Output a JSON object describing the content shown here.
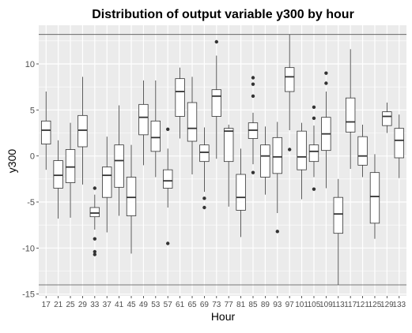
{
  "chart_data": {
    "type": "boxplot",
    "title": "Distribution of output variable y300 by hour",
    "xlabel": "Hour",
    "ylabel": "y300",
    "ylim": [
      -15.2,
      14.2
    ],
    "yticks": [
      -15,
      -10,
      -5,
      0,
      5,
      10
    ],
    "reference_lines": [
      13.2,
      -14
    ],
    "categories": [
      "17",
      "21",
      "25",
      "29",
      "33",
      "37",
      "41",
      "45",
      "49",
      "53",
      "57",
      "61",
      "65",
      "69",
      "73",
      "77",
      "81",
      "85",
      "89",
      "93",
      "97",
      "101",
      "105",
      "109",
      "113",
      "117",
      "121",
      "125",
      "129",
      "133"
    ],
    "boxes": [
      {
        "x": "17",
        "lower": -1.5,
        "q1": 1.3,
        "median": 2.8,
        "q3": 3.8,
        "upper": 7.0,
        "outliers": []
      },
      {
        "x": "21",
        "lower": -6.8,
        "q1": -3.5,
        "median": -2.1,
        "q3": -0.5,
        "upper": 1.7,
        "outliers": []
      },
      {
        "x": "25",
        "lower": -6.7,
        "q1": -2.9,
        "median": -1.2,
        "q3": 0.7,
        "upper": 3.6,
        "outliers": []
      },
      {
        "x": "29",
        "lower": -3.1,
        "q1": 1.0,
        "median": 2.8,
        "q3": 4.4,
        "upper": 8.6,
        "outliers": []
      },
      {
        "x": "33",
        "lower": -8.0,
        "q1": -6.6,
        "median": -6.2,
        "q3": -5.6,
        "upper": -4.2,
        "outliers": [
          -3.5,
          -9.0,
          -10.4,
          -10.7
        ]
      },
      {
        "x": "37",
        "lower": -8.3,
        "q1": -4.5,
        "median": -2.1,
        "q3": -1.2,
        "upper": 2.1,
        "outliers": []
      },
      {
        "x": "41",
        "lower": -6.5,
        "q1": -3.4,
        "median": -0.5,
        "q3": 1.2,
        "upper": 5.5,
        "outliers": []
      },
      {
        "x": "45",
        "lower": -10.6,
        "q1": -6.5,
        "median": -4.5,
        "q3": -2.3,
        "upper": 1.2,
        "outliers": []
      },
      {
        "x": "49",
        "lower": -1.0,
        "q1": 2.3,
        "median": 4.2,
        "q3": 5.6,
        "upper": 8.2,
        "outliers": []
      },
      {
        "x": "53",
        "lower": -2.3,
        "q1": 0.5,
        "median": 2.0,
        "q3": 3.8,
        "upper": 8.2,
        "outliers": []
      },
      {
        "x": "57",
        "lower": -5.6,
        "q1": -3.5,
        "median": -2.7,
        "q3": -1.5,
        "upper": 0.8,
        "outliers": [
          2.9,
          -9.5
        ]
      },
      {
        "x": "61",
        "lower": 1.9,
        "q1": 4.3,
        "median": 7.0,
        "q3": 8.4,
        "upper": 9.6,
        "outliers": []
      },
      {
        "x": "65",
        "lower": -2.0,
        "q1": 1.6,
        "median": 3.0,
        "q3": 5.8,
        "upper": 8.6,
        "outliers": []
      },
      {
        "x": "69",
        "lower": -3.9,
        "q1": -0.6,
        "median": 0.4,
        "q3": 1.2,
        "upper": 3.1,
        "outliers": [
          -4.6,
          -5.6
        ]
      },
      {
        "x": "73",
        "lower": -0.3,
        "q1": 4.3,
        "median": 6.5,
        "q3": 7.2,
        "upper": 10.9,
        "outliers": [
          12.4
        ]
      },
      {
        "x": "77",
        "lower": -5.5,
        "q1": -0.6,
        "median": 2.7,
        "q3": 3.0,
        "upper": 3.4,
        "outliers": []
      },
      {
        "x": "81",
        "lower": -8.8,
        "q1": -5.9,
        "median": -4.5,
        "q3": -2.0,
        "upper": 0.8,
        "outliers": []
      },
      {
        "x": "85",
        "lower": -0.9,
        "q1": 1.9,
        "median": 2.8,
        "q3": 3.6,
        "upper": 4.7,
        "outliers": [
          8.5,
          7.8,
          6.5,
          -1.8
        ]
      },
      {
        "x": "89",
        "lower": -4.2,
        "q1": -2.3,
        "median": 0.0,
        "q3": 1.2,
        "upper": 3.2,
        "outliers": []
      },
      {
        "x": "93",
        "lower": -6.2,
        "q1": -1.9,
        "median": -0.1,
        "q3": 2.0,
        "upper": 3.7,
        "outliers": [
          -8.2
        ]
      },
      {
        "x": "97",
        "lower": 2.8,
        "q1": 7.0,
        "median": 8.6,
        "q3": 9.6,
        "upper": 13.2,
        "outliers": [
          0.7
        ]
      },
      {
        "x": "101",
        "lower": -4.7,
        "q1": -1.5,
        "median": -0.1,
        "q3": 2.7,
        "upper": 3.6,
        "outliers": []
      },
      {
        "x": "105",
        "lower": -2.3,
        "q1": -0.6,
        "median": 0.5,
        "q3": 1.2,
        "upper": 3.3,
        "outliers": [
          5.3,
          4.1,
          -3.6
        ]
      },
      {
        "x": "109",
        "lower": -3.5,
        "q1": 0.6,
        "median": 2.4,
        "q3": 4.2,
        "upper": 7.0,
        "outliers": [
          9.0,
          7.9
        ]
      },
      {
        "x": "113",
        "lower": -14.0,
        "q1": -8.4,
        "median": -6.3,
        "q3": -4.5,
        "upper": -2.5,
        "outliers": []
      },
      {
        "x": "117",
        "lower": -1.4,
        "q1": 2.6,
        "median": 3.7,
        "q3": 6.3,
        "upper": 11.6,
        "outliers": []
      },
      {
        "x": "121",
        "lower": -2.3,
        "q1": -1.0,
        "median": 0.0,
        "q3": 2.1,
        "upper": 3.4,
        "outliers": []
      },
      {
        "x": "125",
        "lower": -9.0,
        "q1": -7.3,
        "median": -4.4,
        "q3": -1.8,
        "upper": 0.2,
        "outliers": []
      },
      {
        "x": "129",
        "lower": 2.5,
        "q1": 3.3,
        "median": 4.3,
        "q3": 4.8,
        "upper": 5.8,
        "outliers": []
      },
      {
        "x": "133",
        "lower": -2.4,
        "q1": -0.2,
        "median": 1.7,
        "q3": 3.0,
        "upper": 4.5,
        "outliers": []
      }
    ],
    "grid": true,
    "panel_background": "#ebebeb",
    "box_fill": "#ffffff",
    "line_color": "#333333"
  }
}
